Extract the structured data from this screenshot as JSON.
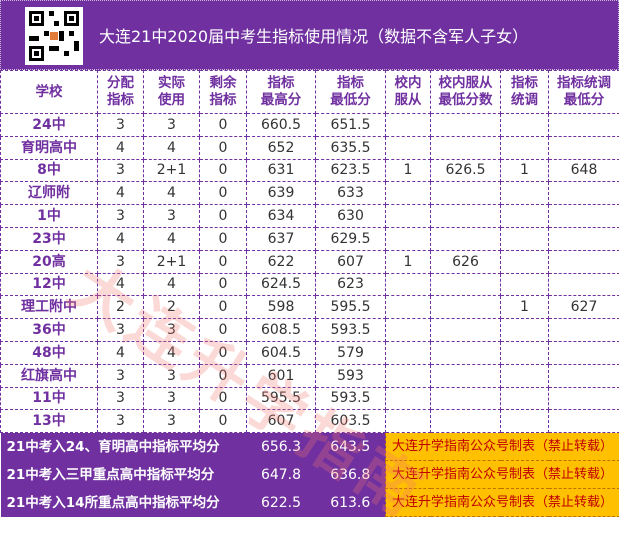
{
  "title": "大连21中2020届中考生指标使用情况（数据不含军人子女）",
  "qr_icon": "qr-code-icon",
  "watermark": "大连升学指南",
  "colors": {
    "header_bg": "#7030a0",
    "note_bg": "#ffc000",
    "note_text": "#c00000"
  },
  "headers": [
    [
      "学校"
    ],
    [
      "分配",
      "指标"
    ],
    [
      "实际",
      "使用"
    ],
    [
      "剩余",
      "指标"
    ],
    [
      "指标",
      "最高分"
    ],
    [
      "指标",
      "最低分"
    ],
    [
      "校内",
      "服从"
    ],
    [
      "校内服从",
      "最低分数"
    ],
    [
      "指标",
      "统调"
    ],
    [
      "指标统调",
      "最低分"
    ]
  ],
  "rows": [
    [
      "24中",
      "3",
      "3",
      "0",
      "660.5",
      "651.5",
      "",
      "",
      "",
      ""
    ],
    [
      "育明高中",
      "4",
      "4",
      "0",
      "652",
      "635.5",
      "",
      "",
      "",
      ""
    ],
    [
      "8中",
      "3",
      "2+1",
      "0",
      "631",
      "623.5",
      "1",
      "626.5",
      "1",
      "648"
    ],
    [
      "辽师附",
      "4",
      "4",
      "0",
      "639",
      "633",
      "",
      "",
      "",
      ""
    ],
    [
      "1中",
      "3",
      "3",
      "0",
      "634",
      "630",
      "",
      "",
      "",
      ""
    ],
    [
      "23中",
      "4",
      "4",
      "0",
      "637",
      "629.5",
      "",
      "",
      "",
      ""
    ],
    [
      "20高",
      "3",
      "2+1",
      "0",
      "622",
      "607",
      "1",
      "626",
      "",
      ""
    ],
    [
      "12中",
      "4",
      "4",
      "0",
      "624.5",
      "623",
      "",
      "",
      "",
      ""
    ],
    [
      "理工附中",
      "2",
      "2",
      "0",
      "598",
      "595.5",
      "",
      "",
      "1",
      "627"
    ],
    [
      "36中",
      "3",
      "3",
      "0",
      "608.5",
      "593.5",
      "",
      "",
      "",
      ""
    ],
    [
      "48中",
      "4",
      "4",
      "0",
      "604.5",
      "579",
      "",
      "",
      "",
      ""
    ],
    [
      "红旗高中",
      "3",
      "3",
      "0",
      "601",
      "593",
      "",
      "",
      "",
      ""
    ],
    [
      "11中",
      "3",
      "3",
      "0",
      "595.5",
      "593.5",
      "",
      "",
      "",
      ""
    ],
    [
      "13中",
      "3",
      "3",
      "0",
      "607",
      "603.5",
      "",
      "",
      "",
      ""
    ]
  ],
  "footer": [
    {
      "label": "21中考入24、育明高中指标平均分",
      "max": "656.3",
      "min": "643.5",
      "note": "大连升学指南公众号制表（禁止转载）"
    },
    {
      "label": "21中考入三甲重点高中指标平均分",
      "max": "647.8",
      "min": "636.8",
      "note": "大连升学指南公众号制表（禁止转载）"
    },
    {
      "label": "21中考入14所重点高中指标平均分",
      "max": "622.5",
      "min": "613.6",
      "note": "大连升学指南公众号制表（禁止转载）"
    }
  ]
}
